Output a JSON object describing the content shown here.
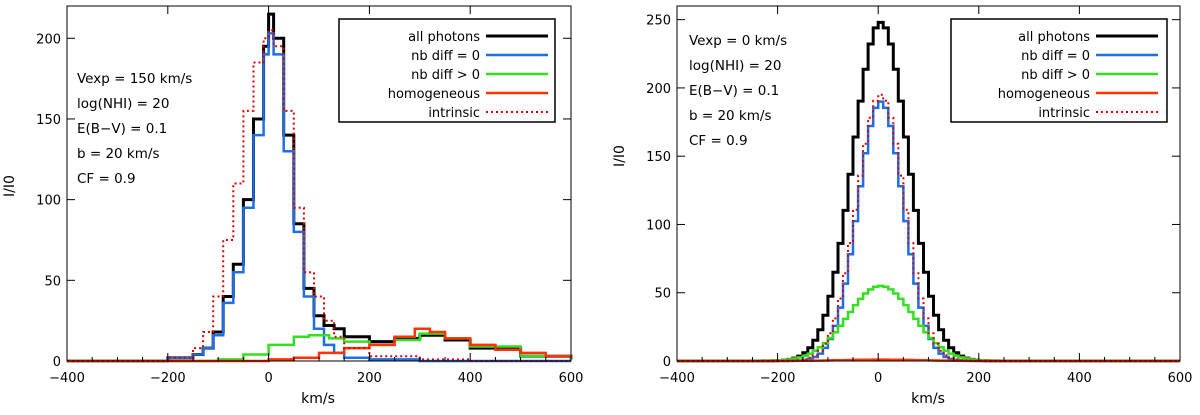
{
  "colors": {
    "all_photons": "#000000",
    "nb_diff_0": "#1f6fe0",
    "nb_diff_gt0": "#33e01f",
    "homogeneous": "#ff3300",
    "intrinsic": "#e00000"
  },
  "chart_data": [
    {
      "type": "line",
      "title": "",
      "xlabel": "km/s",
      "ylabel": "I/I0",
      "xlim": [
        -400,
        600
      ],
      "ylim": [
        0,
        220
      ],
      "xticks": [
        -400,
        -200,
        0,
        200,
        400,
        600
      ],
      "yticks": [
        0,
        50,
        100,
        150,
        200
      ],
      "tick_labels_x": [
        "−400",
        "−200",
        "0",
        "200",
        "400",
        "600"
      ],
      "tick_labels_y": [
        "0",
        "50",
        "100",
        "150",
        "200"
      ],
      "legend": {
        "position": "top-right",
        "entries": [
          "all photons",
          "nb diff = 0",
          "nb diff > 0",
          "homogeneous",
          "intrinsic"
        ]
      },
      "annotations": [
        "Vexp = 150 km/s",
        "log(NHI) = 20",
        "E(B−V) = 0.1",
        "b = 20 km/s",
        "CF = 0.9"
      ],
      "series": [
        {
          "name": "all photons",
          "style": "step",
          "x": [
            -400,
            -200,
            -150,
            -130,
            -110,
            -90,
            -70,
            -50,
            -30,
            -10,
            0,
            10,
            30,
            50,
            70,
            90,
            110,
            130,
            150,
            200,
            250,
            300,
            350,
            400,
            500,
            600
          ],
          "y": [
            0,
            2,
            4,
            8,
            18,
            40,
            60,
            100,
            150,
            195,
            215,
            200,
            140,
            85,
            45,
            28,
            22,
            20,
            15,
            12,
            14,
            16,
            13,
            8,
            3,
            1
          ]
        },
        {
          "name": "nb diff = 0",
          "style": "step",
          "x": [
            -400,
            -200,
            -150,
            -130,
            -110,
            -90,
            -70,
            -50,
            -30,
            -10,
            0,
            10,
            30,
            50,
            70,
            90,
            110,
            130,
            150,
            200,
            300,
            400,
            600
          ],
          "y": [
            0,
            2,
            4,
            8,
            16,
            36,
            55,
            95,
            140,
            190,
            203,
            190,
            130,
            80,
            40,
            20,
            10,
            5,
            2,
            1,
            0,
            0,
            0
          ]
        },
        {
          "name": "nb diff > 0",
          "style": "step",
          "x": [
            -400,
            -200,
            -100,
            -50,
            0,
            50,
            80,
            120,
            150,
            200,
            250,
            300,
            350,
            400,
            500,
            600
          ],
          "y": [
            0,
            0,
            1,
            4,
            10,
            15,
            16,
            14,
            12,
            10,
            13,
            17,
            14,
            9,
            3,
            1
          ]
        },
        {
          "name": "homogeneous",
          "style": "step",
          "x": [
            -400,
            -100,
            0,
            50,
            100,
            150,
            200,
            250,
            290,
            320,
            350,
            400,
            450,
            500,
            550,
            600
          ],
          "y": [
            0,
            0,
            1,
            2,
            5,
            8,
            10,
            15,
            20,
            18,
            14,
            10,
            7,
            5,
            3,
            2
          ]
        },
        {
          "name": "intrinsic",
          "style": "dotted-step",
          "x": [
            -400,
            -200,
            -150,
            -130,
            -110,
            -90,
            -70,
            -50,
            -30,
            -10,
            0,
            10,
            30,
            50,
            70,
            90,
            110,
            130,
            150,
            200,
            300,
            400,
            600
          ],
          "y": [
            0,
            2,
            8,
            18,
            40,
            75,
            110,
            155,
            185,
            200,
            205,
            195,
            155,
            95,
            55,
            40,
            25,
            15,
            8,
            3,
            1,
            0,
            0
          ]
        }
      ]
    },
    {
      "type": "line",
      "title": "",
      "xlabel": "km/s",
      "ylabel": "I/I0",
      "xlim": [
        -400,
        600
      ],
      "ylim": [
        0,
        260
      ],
      "xticks": [
        -400,
        -200,
        0,
        200,
        400,
        600
      ],
      "yticks": [
        0,
        50,
        100,
        150,
        200,
        250
      ],
      "tick_labels_x": [
        "−400",
        "−200",
        "0",
        "200",
        "400",
        "600"
      ],
      "tick_labels_y": [
        "0",
        "50",
        "100",
        "150",
        "200",
        "250"
      ],
      "legend": {
        "position": "top-right",
        "entries": [
          "all photons",
          "nb diff = 0",
          "nb diff > 0",
          "homogeneous",
          "intrinsic"
        ]
      },
      "annotations": [
        "Vexp = 0 km/s",
        "log(NHI) = 20",
        "E(B−V) = 0.1",
        "b = 20 km/s",
        "CF = 0.9"
      ],
      "series": [
        {
          "name": "all photons",
          "style": "step",
          "gaussian": {
            "amplitude": 248,
            "center": 0,
            "sigma": 55
          }
        },
        {
          "name": "nb diff = 0",
          "style": "step",
          "gaussian": {
            "amplitude": 190,
            "center": 0,
            "sigma": 45
          }
        },
        {
          "name": "nb diff > 0",
          "style": "step",
          "gaussian": {
            "amplitude": 55,
            "center": 0,
            "sigma": 65
          }
        },
        {
          "name": "homogeneous",
          "style": "step",
          "gaussian": {
            "amplitude": 1,
            "center": 0,
            "sigma": 80
          }
        },
        {
          "name": "intrinsic",
          "style": "dotted-step",
          "gaussian": {
            "amplitude": 195,
            "center": 0,
            "sigma": 47
          }
        }
      ]
    }
  ]
}
